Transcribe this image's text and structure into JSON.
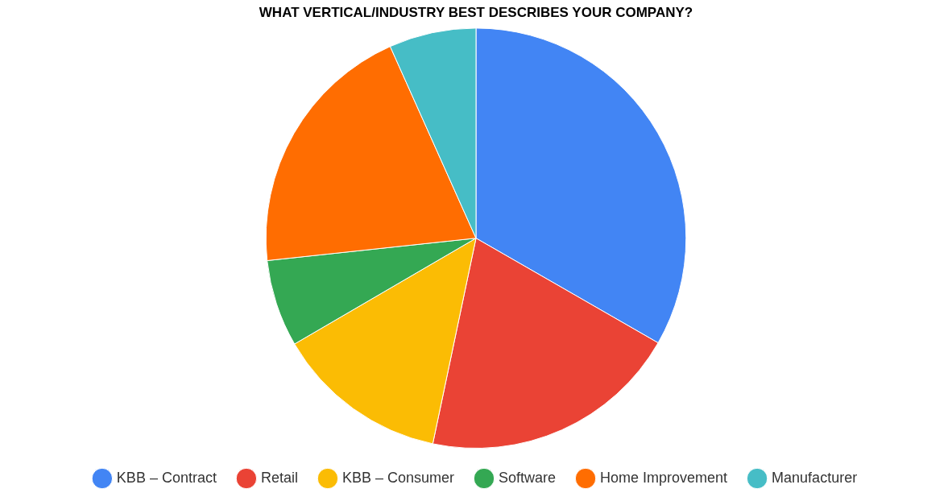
{
  "chart_data": {
    "type": "pie",
    "title": "WHAT VERTICAL/INDUSTRY BEST DESCRIBES YOUR COMPANY?",
    "categories": [
      "KBB – Contract",
      "Retail",
      "KBB – Consumer",
      "Software",
      "Home Improvement",
      "Manufacturer"
    ],
    "values": [
      33.3,
      20,
      13.3,
      6.7,
      20,
      6.7
    ],
    "colors": [
      "#4285f4",
      "#ea4335",
      "#fbbc04",
      "#34a853",
      "#ff6d01",
      "#46bdc6"
    ],
    "legend": "bottom"
  }
}
